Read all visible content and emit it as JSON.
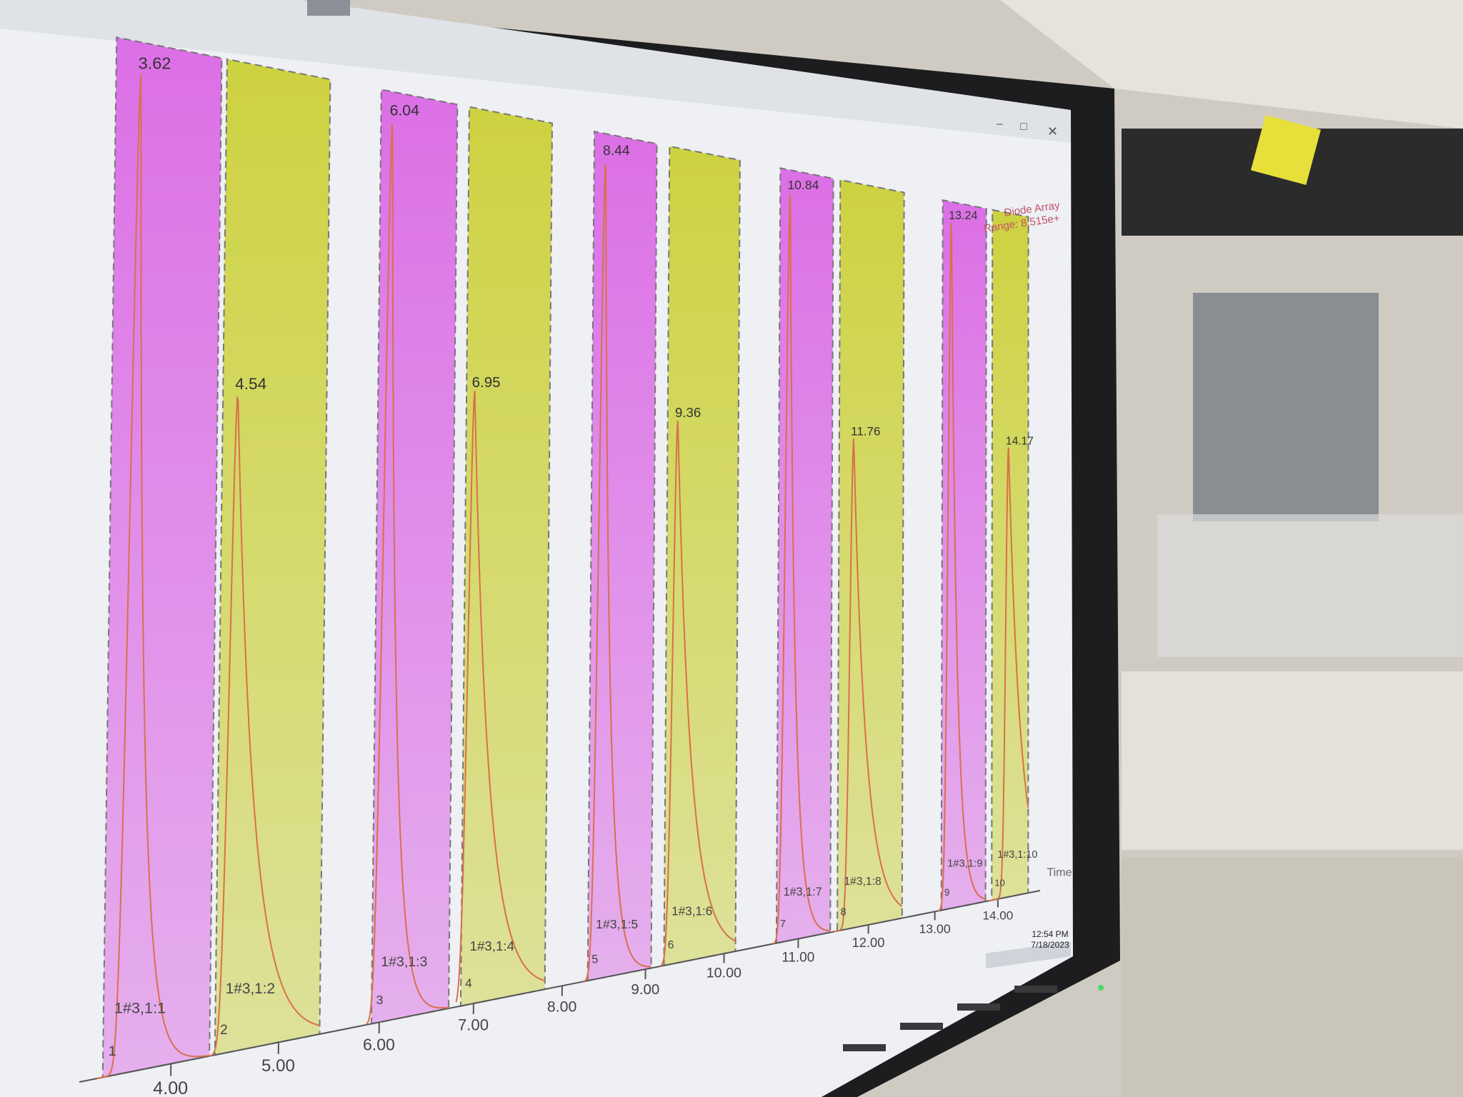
{
  "chart_data": {
    "type": "fraction_chromatogram",
    "legend": [
      "Diode Array",
      "Range: 8.515e+"
    ],
    "x_label": "Time",
    "xlim": [
      3.2,
      14.7
    ],
    "ylim": [
      0,
      105
    ],
    "xticks": [
      {
        "value": 4,
        "label": "4.00"
      },
      {
        "value": 5,
        "label": "5.00"
      },
      {
        "value": 6,
        "label": "6.00"
      },
      {
        "value": 7,
        "label": "7.00"
      },
      {
        "value": 8,
        "label": "8.00"
      },
      {
        "value": 9,
        "label": "9.00"
      },
      {
        "value": 10,
        "label": "10.00"
      },
      {
        "value": 11,
        "label": "11.00"
      },
      {
        "value": 12,
        "label": "12.00"
      },
      {
        "value": 13,
        "label": "13.00"
      },
      {
        "value": 14,
        "label": "14.00"
      }
    ],
    "peaks": {
      "times": [
        3.62,
        4.54,
        6.04,
        6.95,
        8.44,
        9.36,
        10.84,
        11.76,
        13.24,
        14.17
      ],
      "heights": [
        102,
        70,
        102,
        72,
        102,
        70,
        102,
        69,
        102,
        69
      ]
    },
    "line_color": "#d9704a",
    "fractions": {
      "names": [
        "1#3,1:1",
        "1#3,1:2",
        "1#3,1:3",
        "1#3,1:4",
        "1#3,1:5",
        "1#3,1:6",
        "1#3,1:7",
        "1#3,1:8",
        "1#3,1:9",
        "1#3,1:10"
      ],
      "numbers": [
        1,
        2,
        3,
        4,
        5,
        6,
        7,
        8,
        9,
        10
      ],
      "starts": [
        3.4,
        4.4,
        5.92,
        6.86,
        8.3,
        9.23,
        10.7,
        11.55,
        13.1,
        13.9
      ],
      "ends": [
        4.35,
        5.4,
        6.73,
        7.8,
        9.07,
        10.15,
        11.45,
        12.5,
        13.8,
        14.5
      ],
      "colors": [
        "#dc6fe6",
        "#cdd240",
        "#dc6fe6",
        "#cdd240",
        "#dc6fe6",
        "#cdd240",
        "#dc6fe6",
        "#cdd240",
        "#dc6fe6",
        "#cdd240"
      ]
    }
  },
  "taskbar": {
    "time": "12:54 PM",
    "date": "7/18/2023"
  }
}
